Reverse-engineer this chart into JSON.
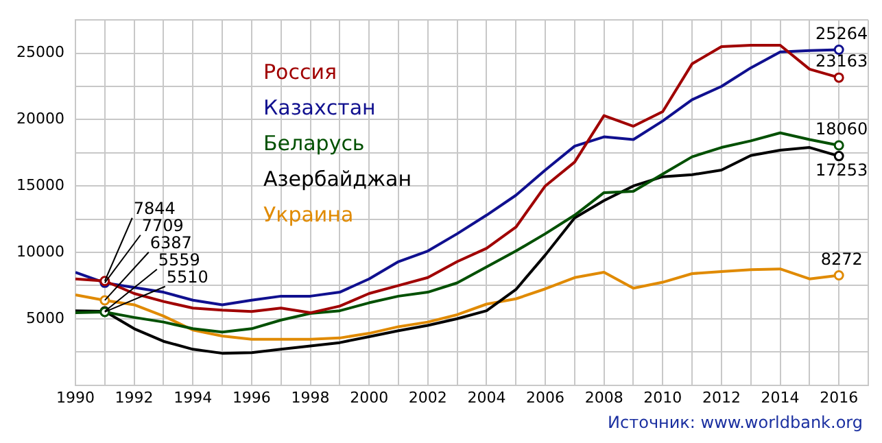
{
  "chart_data": {
    "type": "line",
    "x": [
      1990,
      1991,
      1992,
      1993,
      1994,
      1995,
      1996,
      1997,
      1998,
      1999,
      2000,
      2001,
      2002,
      2003,
      2004,
      2005,
      2006,
      2007,
      2008,
      2009,
      2010,
      2011,
      2012,
      2013,
      2014,
      2015,
      2016
    ],
    "series": [
      {
        "name": "Россия",
        "color": "#a00000",
        "values": [
          8000,
          7844,
          6900,
          6300,
          5800,
          5650,
          5550,
          5800,
          5450,
          5950,
          6900,
          7500,
          8100,
          9300,
          10300,
          11900,
          15000,
          16800,
          20300,
          19500,
          20600,
          24200,
          25500,
          25600,
          25600,
          23800,
          23163
        ],
        "value_labels": [
          null,
          "7844",
          null,
          null,
          null,
          null,
          null,
          null,
          null,
          null,
          null,
          null,
          null,
          null,
          null,
          null,
          null,
          null,
          null,
          null,
          null,
          null,
          null,
          null,
          null,
          null,
          "23163"
        ]
      },
      {
        "name": "Казахстан",
        "color": "#10108f",
        "values": [
          8500,
          7709,
          7350,
          7000,
          6400,
          6050,
          6400,
          6700,
          6700,
          7000,
          8000,
          9300,
          10100,
          11400,
          12800,
          14300,
          16200,
          18000,
          18700,
          18500,
          19900,
          21500,
          22500,
          23900,
          25100,
          25200,
          25264
        ],
        "value_labels": [
          null,
          "7709",
          null,
          null,
          null,
          null,
          null,
          null,
          null,
          null,
          null,
          null,
          null,
          null,
          null,
          null,
          null,
          null,
          null,
          null,
          null,
          null,
          null,
          null,
          null,
          null,
          "25264"
        ]
      },
      {
        "name": "Беларусь",
        "color": "#005000",
        "values": [
          5450,
          5510,
          5100,
          4750,
          4250,
          4000,
          4250,
          4900,
          5400,
          5600,
          6200,
          6700,
          7000,
          7700,
          8900,
          10100,
          11400,
          12800,
          14500,
          14600,
          15900,
          17200,
          17900,
          18400,
          19000,
          18500,
          18060
        ],
        "value_labels": [
          null,
          "5510",
          null,
          null,
          null,
          null,
          null,
          null,
          null,
          null,
          null,
          null,
          null,
          null,
          null,
          null,
          null,
          null,
          null,
          null,
          null,
          null,
          null,
          null,
          null,
          null,
          "18060"
        ]
      },
      {
        "name": "Азербайджан",
        "color": "#000000",
        "values": [
          5600,
          5559,
          4250,
          3300,
          2700,
          2400,
          2450,
          2700,
          2950,
          3200,
          3650,
          4100,
          4500,
          5000,
          5600,
          7200,
          9800,
          12600,
          13900,
          15000,
          15700,
          15850,
          16200,
          17300,
          17700,
          17900,
          17253
        ],
        "value_labels": [
          null,
          "5559",
          null,
          null,
          null,
          null,
          null,
          null,
          null,
          null,
          null,
          null,
          null,
          null,
          null,
          null,
          null,
          null,
          null,
          null,
          null,
          null,
          null,
          null,
          null,
          null,
          "17253"
        ]
      },
      {
        "name": "Украина",
        "color": "#e08a00",
        "values": [
          6800,
          6387,
          6050,
          5200,
          4150,
          3700,
          3450,
          3450,
          3450,
          3550,
          3900,
          4400,
          4750,
          5300,
          6100,
          6500,
          7250,
          8100,
          8500,
          7300,
          7750,
          8400,
          8550,
          8700,
          8750,
          8000,
          8272
        ],
        "value_labels": [
          null,
          "6387",
          null,
          null,
          null,
          null,
          null,
          null,
          null,
          null,
          null,
          null,
          null,
          null,
          null,
          null,
          null,
          null,
          null,
          null,
          null,
          null,
          null,
          null,
          null,
          null,
          "8272"
        ]
      }
    ],
    "xlim": [
      1990,
      2017
    ],
    "xticks": [
      1990,
      {
        "value": 1991,
        "label": null
      },
      1992,
      {
        "value": 1993,
        "label": null
      },
      1994,
      {
        "value": 1995,
        "label": null
      },
      1996,
      {
        "value": 1997,
        "label": null
      },
      1998,
      {
        "value": 1999,
        "label": null
      },
      2000,
      {
        "value": 2001,
        "label": null
      },
      2002,
      {
        "value": 2003,
        "label": null
      },
      2004,
      {
        "value": 2005,
        "label": null
      },
      2006,
      {
        "value": 2007,
        "label": null
      },
      2008,
      {
        "value": 2009,
        "label": null
      },
      2010,
      {
        "value": 2011,
        "label": null
      },
      2012,
      {
        "value": 2013,
        "label": null
      },
      2014,
      {
        "value": 2015,
        "label": null
      },
      2016,
      {
        "value": 2017,
        "label": null
      }
    ],
    "ylim": [
      0,
      27500
    ],
    "yticks": [
      {
        "value": 0,
        "label": null
      },
      {
        "value": 2500,
        "label": null
      },
      5000,
      {
        "value": 7500,
        "label": null
      },
      10000,
      {
        "value": 12500,
        "label": null
      },
      15000,
      {
        "value": 17500,
        "label": null
      },
      20000,
      {
        "value": 22500,
        "label": null
      },
      25000,
      {
        "value": 27500,
        "label": null
      }
    ],
    "grid": true,
    "legend": "top left",
    "marker": "none",
    "line_style": "solid",
    "annotations": [
      "Источник: www.worldbank.org"
    ]
  }
}
